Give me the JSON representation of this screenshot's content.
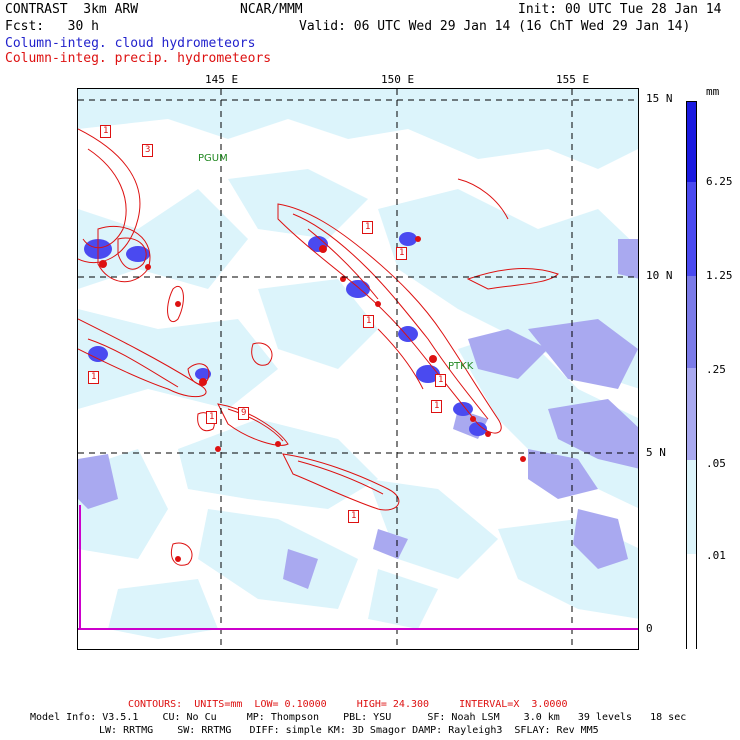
{
  "header": {
    "line1_left": "CONTRAST  3km ARW",
    "line1_mid": "NCAR/MMM",
    "line1_right": "Init: 00 UTC Tue 28 Jan 14",
    "line2_left": "Fcst:   30 h",
    "line2_right": "Valid: 06 UTC Wed 29 Jan 14 (16 ChT Wed 29 Jan 14)",
    "legend_blue": "Column-integ. cloud hydrometeors",
    "legend_red": "Column-integ. precip. hydrometeors",
    "colors": {
      "cloud": "#2222cc",
      "precip": "#dd1111"
    }
  },
  "map": {
    "lon_labels": [
      "145 E",
      "150 E",
      "155 E"
    ],
    "lat_labels": [
      "15 N",
      "10 N",
      "5 N",
      "0"
    ],
    "stations": [
      "PGUM",
      "PTKK"
    ],
    "contour_labels": [
      "1",
      "3",
      "1",
      "1",
      "1",
      "9",
      "1",
      "1",
      "1",
      "1",
      "1"
    ]
  },
  "colorbar": {
    "unit": "mm",
    "labels": [
      "6.25",
      "1.25",
      ".25",
      ".05",
      ".01"
    ],
    "colors": [
      "#1a1ae0",
      "#4a4af0",
      "#7b7be8",
      "#a9a9f0",
      "#dcf4fb",
      "#ffffff"
    ]
  },
  "footer": {
    "contours": "CONTOURS:  UNITS=mm  LOW= 0.10000     HIGH= 24.300     INTERVAL=X  3.0000",
    "model_line1": "Model Info: V3.5.1    CU: No Cu     MP: Thompson    PBL: YSU      SF: Noah LSM    3.0 km   39 levels   18 sec",
    "model_line2": "LW: RRTMG    SW: RRTMG   DIFF: simple KM: 3D Smagor DAMP: Rayleigh3  SFLAY: Rev MM5"
  }
}
